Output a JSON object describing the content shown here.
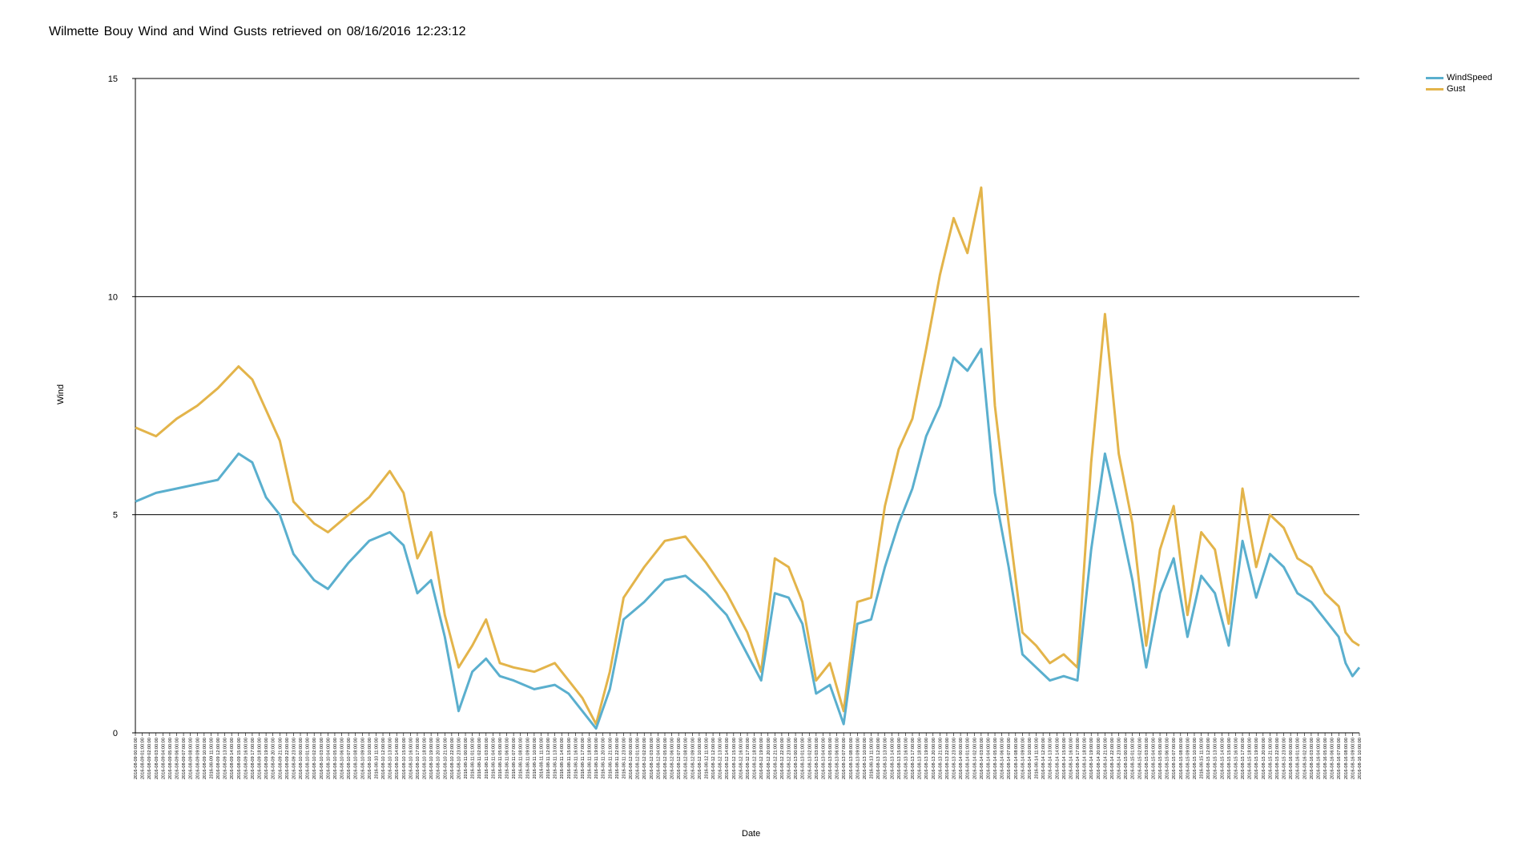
{
  "chart_data": {
    "type": "line",
    "title": "Wilmette Bouy Wind and Wind Gusts retrieved on 08/16/2016 12:23:12",
    "xlabel": "Date",
    "ylabel": "Wind",
    "ylim": [
      0,
      15
    ],
    "yticks": [
      0,
      5,
      10,
      15
    ],
    "grid": "horizontal",
    "legend_position": "top-right",
    "x_start": "2016-08-09 00:00",
    "x_end": "2016-08-16 10:00",
    "x_tick_format": "YYYY-MM-DD HH:MM:SS",
    "x_tick_interval_minutes": 60,
    "series": [
      {
        "name": "WindSpeed",
        "color": "#5aafce",
        "points": [
          [
            "2016-08-09 00:00",
            5.3
          ],
          [
            "2016-08-09 03:00",
            5.5
          ],
          [
            "2016-08-09 06:00",
            5.6
          ],
          [
            "2016-08-09 09:00",
            5.7
          ],
          [
            "2016-08-09 12:00",
            5.8
          ],
          [
            "2016-08-09 15:00",
            6.4
          ],
          [
            "2016-08-09 17:00",
            6.2
          ],
          [
            "2016-08-09 19:00",
            5.4
          ],
          [
            "2016-08-09 21:00",
            5.0
          ],
          [
            "2016-08-09 23:00",
            4.1
          ],
          [
            "2016-08-10 02:00",
            3.5
          ],
          [
            "2016-08-10 04:00",
            3.3
          ],
          [
            "2016-08-10 07:00",
            3.9
          ],
          [
            "2016-08-10 10:00",
            4.4
          ],
          [
            "2016-08-10 13:00",
            4.6
          ],
          [
            "2016-08-10 15:00",
            4.3
          ],
          [
            "2016-08-10 17:00",
            3.2
          ],
          [
            "2016-08-10 19:00",
            3.5
          ],
          [
            "2016-08-10 21:00",
            2.2
          ],
          [
            "2016-08-10 23:00",
            0.5
          ],
          [
            "2016-08-11 01:00",
            1.4
          ],
          [
            "2016-08-11 03:00",
            1.7
          ],
          [
            "2016-08-11 05:00",
            1.3
          ],
          [
            "2016-08-11 07:00",
            1.2
          ],
          [
            "2016-08-11 10:00",
            1.0
          ],
          [
            "2016-08-11 13:00",
            1.1
          ],
          [
            "2016-08-11 15:00",
            0.9
          ],
          [
            "2016-08-11 17:00",
            0.5
          ],
          [
            "2016-08-11 19:00",
            0.1
          ],
          [
            "2016-08-11 21:00",
            1.0
          ],
          [
            "2016-08-11 23:00",
            2.6
          ],
          [
            "2016-08-12 02:00",
            3.0
          ],
          [
            "2016-08-12 05:00",
            3.5
          ],
          [
            "2016-08-12 08:00",
            3.6
          ],
          [
            "2016-08-12 11:00",
            3.2
          ],
          [
            "2016-08-12 14:00",
            2.7
          ],
          [
            "2016-08-12 17:00",
            1.8
          ],
          [
            "2016-08-12 19:00",
            1.2
          ],
          [
            "2016-08-12 21:00",
            3.2
          ],
          [
            "2016-08-12 23:00",
            3.1
          ],
          [
            "2016-08-13 01:00",
            2.5
          ],
          [
            "2016-08-13 03:00",
            0.9
          ],
          [
            "2016-08-13 05:00",
            1.1
          ],
          [
            "2016-08-13 07:00",
            0.2
          ],
          [
            "2016-08-13 09:00",
            2.5
          ],
          [
            "2016-08-13 11:00",
            2.6
          ],
          [
            "2016-08-13 13:00",
            3.8
          ],
          [
            "2016-08-13 15:00",
            4.8
          ],
          [
            "2016-08-13 17:00",
            5.6
          ],
          [
            "2016-08-13 19:00",
            6.8
          ],
          [
            "2016-08-13 21:00",
            7.5
          ],
          [
            "2016-08-13 23:00",
            8.6
          ],
          [
            "2016-08-14 01:00",
            8.3
          ],
          [
            "2016-08-14 03:00",
            8.8
          ],
          [
            "2016-08-14 05:00",
            5.5
          ],
          [
            "2016-08-14 07:00",
            3.8
          ],
          [
            "2016-08-14 09:00",
            1.8
          ],
          [
            "2016-08-14 11:00",
            1.5
          ],
          [
            "2016-08-14 13:00",
            1.2
          ],
          [
            "2016-08-14 15:00",
            1.3
          ],
          [
            "2016-08-14 17:00",
            1.2
          ],
          [
            "2016-08-14 19:00",
            4.2
          ],
          [
            "2016-08-14 21:00",
            6.4
          ],
          [
            "2016-08-14 23:00",
            5.0
          ],
          [
            "2016-08-15 01:00",
            3.5
          ],
          [
            "2016-08-15 03:00",
            1.5
          ],
          [
            "2016-08-15 05:00",
            3.2
          ],
          [
            "2016-08-15 07:00",
            4.0
          ],
          [
            "2016-08-15 09:00",
            2.2
          ],
          [
            "2016-08-15 11:00",
            3.6
          ],
          [
            "2016-08-15 13:00",
            3.2
          ],
          [
            "2016-08-15 15:00",
            2.0
          ],
          [
            "2016-08-15 17:00",
            4.4
          ],
          [
            "2016-08-15 19:00",
            3.1
          ],
          [
            "2016-08-15 21:00",
            4.1
          ],
          [
            "2016-08-15 23:00",
            3.8
          ],
          [
            "2016-08-16 01:00",
            3.2
          ],
          [
            "2016-08-16 03:00",
            3.0
          ],
          [
            "2016-08-16 05:00",
            2.6
          ],
          [
            "2016-08-16 07:00",
            2.2
          ],
          [
            "2016-08-16 08:00",
            1.6
          ],
          [
            "2016-08-16 09:00",
            1.3
          ],
          [
            "2016-08-16 10:00",
            1.5
          ]
        ]
      },
      {
        "name": "Gust",
        "color": "#e3b44a",
        "points": [
          [
            "2016-08-09 00:00",
            7.0
          ],
          [
            "2016-08-09 03:00",
            6.8
          ],
          [
            "2016-08-09 06:00",
            7.2
          ],
          [
            "2016-08-09 09:00",
            7.5
          ],
          [
            "2016-08-09 12:00",
            7.9
          ],
          [
            "2016-08-09 15:00",
            8.4
          ],
          [
            "2016-08-09 17:00",
            8.1
          ],
          [
            "2016-08-09 19:00",
            7.4
          ],
          [
            "2016-08-09 21:00",
            6.7
          ],
          [
            "2016-08-09 23:00",
            5.3
          ],
          [
            "2016-08-10 02:00",
            4.8
          ],
          [
            "2016-08-10 04:00",
            4.6
          ],
          [
            "2016-08-10 07:00",
            5.0
          ],
          [
            "2016-08-10 10:00",
            5.4
          ],
          [
            "2016-08-10 13:00",
            6.0
          ],
          [
            "2016-08-10 15:00",
            5.5
          ],
          [
            "2016-08-10 17:00",
            4.0
          ],
          [
            "2016-08-10 19:00",
            4.6
          ],
          [
            "2016-08-10 21:00",
            2.7
          ],
          [
            "2016-08-10 23:00",
            1.5
          ],
          [
            "2016-08-11 01:00",
            2.0
          ],
          [
            "2016-08-11 03:00",
            2.6
          ],
          [
            "2016-08-11 05:00",
            1.6
          ],
          [
            "2016-08-11 07:00",
            1.5
          ],
          [
            "2016-08-11 10:00",
            1.4
          ],
          [
            "2016-08-11 13:00",
            1.6
          ],
          [
            "2016-08-11 15:00",
            1.2
          ],
          [
            "2016-08-11 17:00",
            0.8
          ],
          [
            "2016-08-11 19:00",
            0.2
          ],
          [
            "2016-08-11 21:00",
            1.4
          ],
          [
            "2016-08-11 23:00",
            3.1
          ],
          [
            "2016-08-12 02:00",
            3.8
          ],
          [
            "2016-08-12 05:00",
            4.4
          ],
          [
            "2016-08-12 08:00",
            4.5
          ],
          [
            "2016-08-12 11:00",
            3.9
          ],
          [
            "2016-08-12 14:00",
            3.2
          ],
          [
            "2016-08-12 17:00",
            2.3
          ],
          [
            "2016-08-12 19:00",
            1.4
          ],
          [
            "2016-08-12 21:00",
            4.0
          ],
          [
            "2016-08-12 23:00",
            3.8
          ],
          [
            "2016-08-13 01:00",
            3.0
          ],
          [
            "2016-08-13 03:00",
            1.2
          ],
          [
            "2016-08-13 05:00",
            1.6
          ],
          [
            "2016-08-13 07:00",
            0.5
          ],
          [
            "2016-08-13 09:00",
            3.0
          ],
          [
            "2016-08-13 11:00",
            3.1
          ],
          [
            "2016-08-13 13:00",
            5.2
          ],
          [
            "2016-08-13 15:00",
            6.5
          ],
          [
            "2016-08-13 17:00",
            7.2
          ],
          [
            "2016-08-13 19:00",
            8.8
          ],
          [
            "2016-08-13 21:00",
            10.5
          ],
          [
            "2016-08-13 23:00",
            11.8
          ],
          [
            "2016-08-14 01:00",
            11.0
          ],
          [
            "2016-08-14 03:00",
            12.5
          ],
          [
            "2016-08-14 05:00",
            7.5
          ],
          [
            "2016-08-14 07:00",
            4.8
          ],
          [
            "2016-08-14 09:00",
            2.3
          ],
          [
            "2016-08-14 11:00",
            2.0
          ],
          [
            "2016-08-14 13:00",
            1.6
          ],
          [
            "2016-08-14 15:00",
            1.8
          ],
          [
            "2016-08-14 17:00",
            1.5
          ],
          [
            "2016-08-14 19:00",
            6.2
          ],
          [
            "2016-08-14 21:00",
            9.6
          ],
          [
            "2016-08-14 23:00",
            6.4
          ],
          [
            "2016-08-15 01:00",
            4.8
          ],
          [
            "2016-08-15 03:00",
            2.0
          ],
          [
            "2016-08-15 05:00",
            4.2
          ],
          [
            "2016-08-15 07:00",
            5.2
          ],
          [
            "2016-08-15 09:00",
            2.7
          ],
          [
            "2016-08-15 11:00",
            4.6
          ],
          [
            "2016-08-15 13:00",
            4.2
          ],
          [
            "2016-08-15 15:00",
            2.5
          ],
          [
            "2016-08-15 17:00",
            5.6
          ],
          [
            "2016-08-15 19:00",
            3.8
          ],
          [
            "2016-08-15 21:00",
            5.0
          ],
          [
            "2016-08-15 23:00",
            4.7
          ],
          [
            "2016-08-16 01:00",
            4.0
          ],
          [
            "2016-08-16 03:00",
            3.8
          ],
          [
            "2016-08-16 05:00",
            3.2
          ],
          [
            "2016-08-16 07:00",
            2.9
          ],
          [
            "2016-08-16 08:00",
            2.3
          ],
          [
            "2016-08-16 09:00",
            2.1
          ],
          [
            "2016-08-16 10:00",
            2.0
          ]
        ]
      }
    ]
  }
}
